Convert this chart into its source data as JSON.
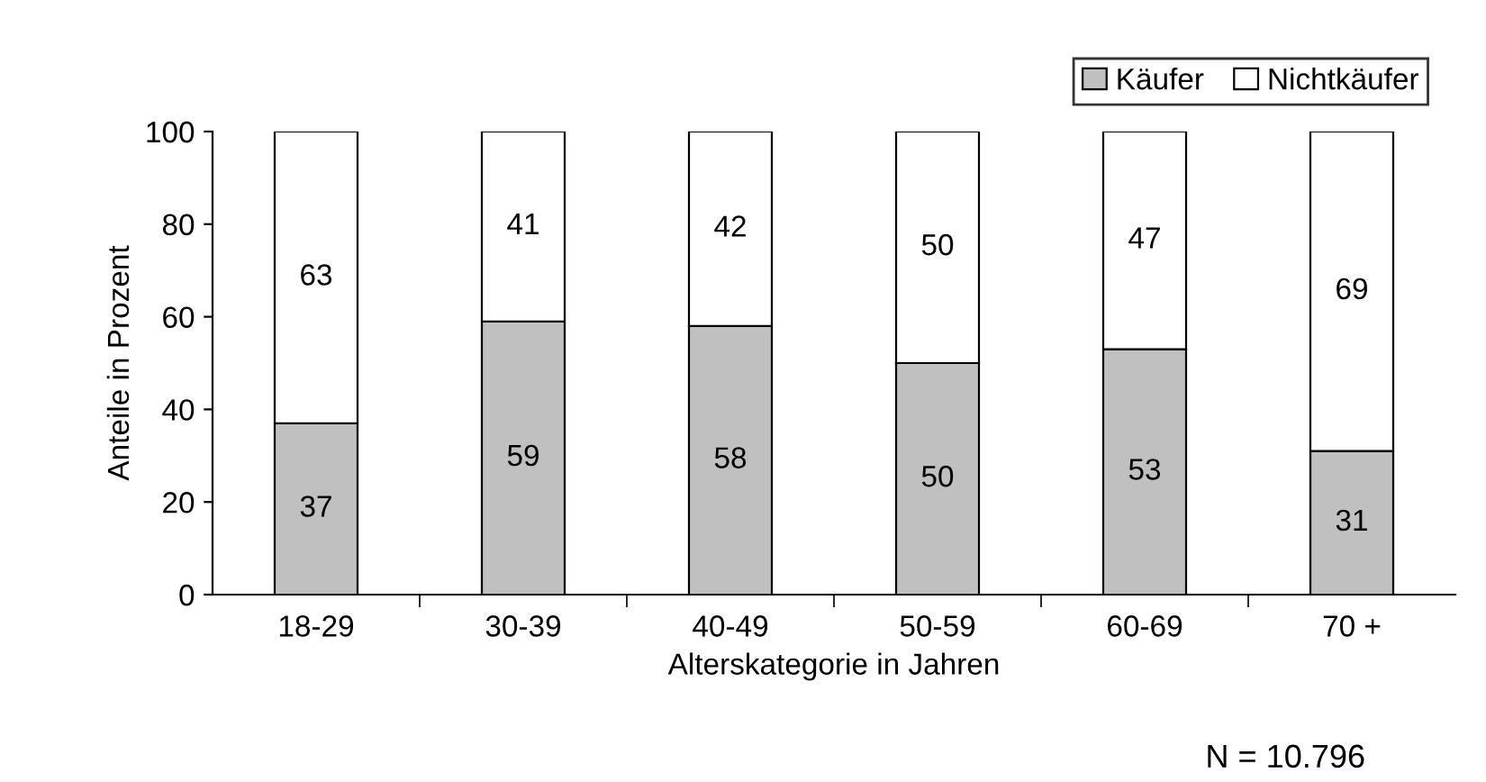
{
  "chart_data": {
    "type": "bar",
    "stacked": true,
    "xlabel": "Alterskategorie in Jahren",
    "ylabel": "Anteile in Prozent",
    "categories": [
      "18-29",
      "30-39",
      "40-49",
      "50-59",
      "60-69",
      "70 +"
    ],
    "series": [
      {
        "name": "Käufer",
        "color": "#c0c0c0",
        "values": [
          37,
          59,
          58,
          50,
          53,
          31
        ]
      },
      {
        "name": "Nichtkäufer",
        "color": "#ffffff",
        "values": [
          63,
          41,
          42,
          50,
          47,
          69
        ]
      }
    ],
    "ylim": [
      0,
      100
    ],
    "yticks": [
      0,
      20,
      40,
      60,
      80,
      100
    ],
    "grid": false,
    "legend": "top right",
    "data_labels": true,
    "annotations": [
      "N = 10.796"
    ]
  }
}
